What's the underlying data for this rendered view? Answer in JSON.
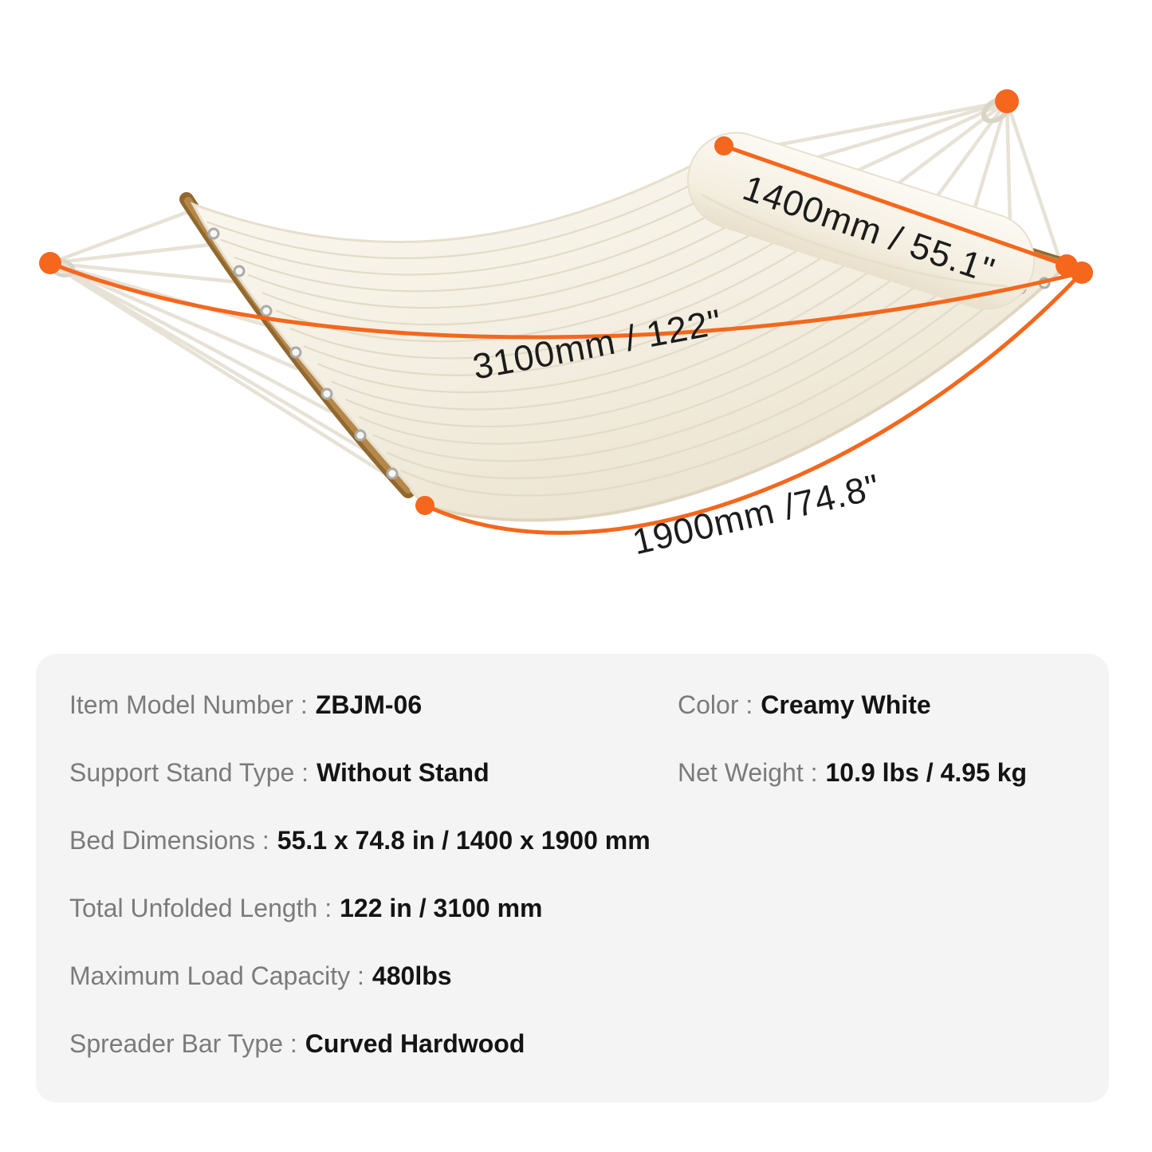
{
  "annotations": {
    "pillow_width": "1400mm / 55.1\"",
    "total_length": "3100mm / 122\"",
    "bed_length": "1900mm /74.8\""
  },
  "specs": {
    "rows": [
      {
        "label": "Item Model Number :",
        "value": "ZBJM-06"
      },
      {
        "label": "Color :",
        "value": "Creamy White"
      },
      {
        "label": "Support Stand Type :",
        "value": "Without Stand"
      },
      {
        "label": "Net Weight :",
        "value": "10.9 lbs / 4.95 kg"
      },
      {
        "label": "Bed Dimensions :",
        "value": "55.1 x 74.8 in / 1400 x 1900 mm"
      },
      {
        "label": "Total Unfolded Length :",
        "value": "122 in / 3100 mm"
      },
      {
        "label": "Maximum Load Capacity :",
        "value": "480lbs"
      },
      {
        "label": "Spreader Bar Type :",
        "value": "Curved Hardwood"
      }
    ]
  },
  "colors": {
    "accent": "#F4671D",
    "panel_bg": "#F4F4F5",
    "label_gray": "#7B7B7B",
    "value_black": "#141414",
    "wood": "#A87A3F",
    "fabric": "#F5F0E4"
  }
}
